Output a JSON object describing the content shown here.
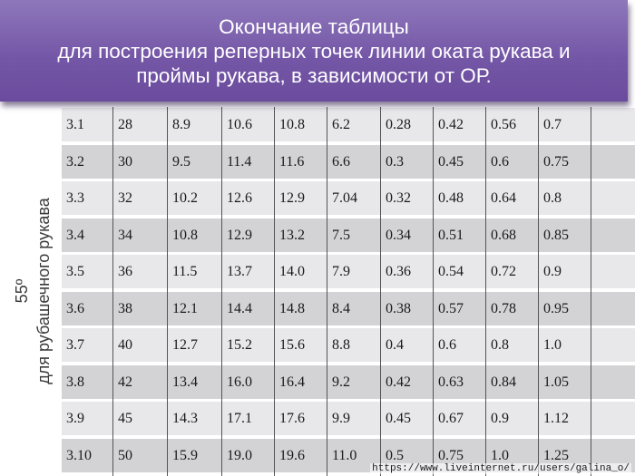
{
  "title": {
    "line1": "Окончание таблицы",
    "line2": "для построения реперных точек линии оката рукава и",
    "line3": "проймы рукава, в зависимости от ОР."
  },
  "side_label": {
    "line1": "55º",
    "line2": "для  рубашечного рукава"
  },
  "table": {
    "rows": [
      [
        "3.1",
        "28",
        "8.9",
        "10.6",
        "10.8",
        "6.2",
        "0.28",
        "0.42",
        "0.56",
        "0.7"
      ],
      [
        "3.2",
        "30",
        "9.5",
        "11.4",
        "11.6",
        "6.6",
        "0.3",
        "0.45",
        "0.6",
        "0.75"
      ],
      [
        "3.3",
        "32",
        "10.2",
        "12.6",
        "12.9",
        "7.04",
        "0.32",
        "0.48",
        "0.64",
        "0.8"
      ],
      [
        "3.4",
        "34",
        "10.8",
        "12.9",
        "13.2",
        "7.5",
        "0.34",
        "0.51",
        "0.68",
        "0.85"
      ],
      [
        "3.5",
        "36",
        "11.5",
        "13.7",
        "14.0",
        "7.9",
        "0.36",
        "0.54",
        "0.72",
        "0.9"
      ],
      [
        "3.6",
        "38",
        "12.1",
        "14.4",
        "14.8",
        "8.4",
        "0.38",
        "0.57",
        "0.78",
        "0.95"
      ],
      [
        "3.7",
        "40",
        "12.7",
        "15.2",
        "15.6",
        "8.8",
        "0.4",
        "0.6",
        "0.8",
        "1.0"
      ],
      [
        "3.8",
        "42",
        "13.4",
        "16.0",
        "16.4",
        "9.2",
        "0.42",
        "0.63",
        "0.84",
        "1.05"
      ],
      [
        "3.9",
        "45",
        "14.3",
        "17.1",
        "17.6",
        "9.9",
        "0.45",
        "0.67",
        "0.9",
        "1.12"
      ],
      [
        "3.10",
        "50",
        "15.9",
        "19.0",
        "19.6",
        "11.0",
        "0.5",
        "0.75",
        "1.0",
        "1.25"
      ]
    ]
  },
  "watermark": "https://www.liveinternet.ru/users/galina_o/"
}
